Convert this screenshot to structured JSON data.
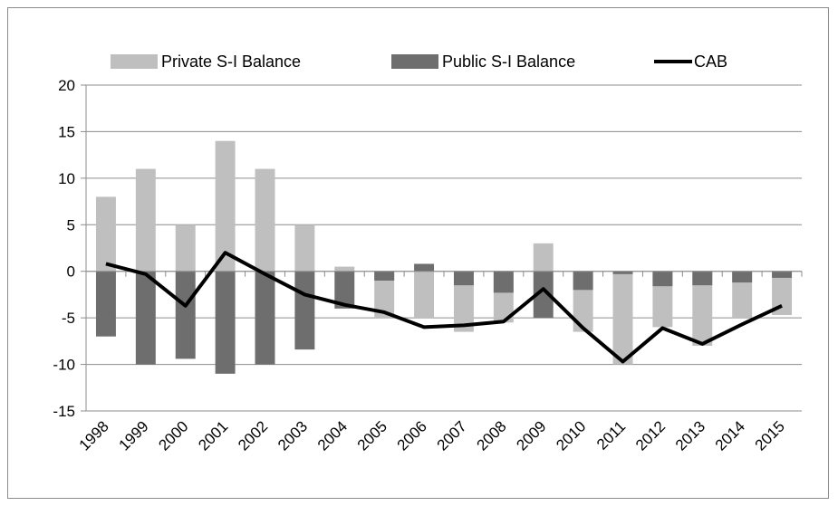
{
  "chart_data": {
    "type": "bar",
    "categories": [
      "1998",
      "1999",
      "2000",
      "2001",
      "2002",
      "2003",
      "2004",
      "2005",
      "2006",
      "2007",
      "2008",
      "2009",
      "2010",
      "2011",
      "2012",
      "2013",
      "2014",
      "2015"
    ],
    "series": [
      {
        "name": "Private S-I Balance",
        "kind": "bar",
        "color": "#bfbfbf",
        "values": [
          8,
          11,
          5,
          14,
          11,
          5,
          0.5,
          -5,
          -5,
          -6.5,
          -5.5,
          3,
          -6.5,
          -10,
          -6,
          -8,
          -5,
          -4.7
        ]
      },
      {
        "name": "Public S-I Balance",
        "kind": "bar",
        "color": "#6e6e6e",
        "values": [
          -7,
          -10,
          -9.4,
          -11,
          -10,
          -8.4,
          -4,
          -1,
          0.8,
          -1.5,
          -2.3,
          -5,
          -2,
          -0.3,
          -1.6,
          -1.5,
          -1.2,
          -0.7
        ]
      },
      {
        "name": "CAB",
        "kind": "line",
        "color": "#000000",
        "values": [
          0.8,
          -0.3,
          -3.7,
          2,
          -0.3,
          -2.5,
          -3.6,
          -4.4,
          -6,
          -5.8,
          -5.4,
          -1.9,
          -6.1,
          -9.7,
          -6.1,
          -7.8,
          -5.7,
          -3.7
        ]
      }
    ],
    "ylim": [
      -15,
      20
    ],
    "yticks": [
      -15,
      -10,
      -5,
      0,
      5,
      10,
      15,
      20
    ],
    "title": "",
    "xlabel": "",
    "ylabel": "",
    "grid": true,
    "legend_position": "top"
  }
}
